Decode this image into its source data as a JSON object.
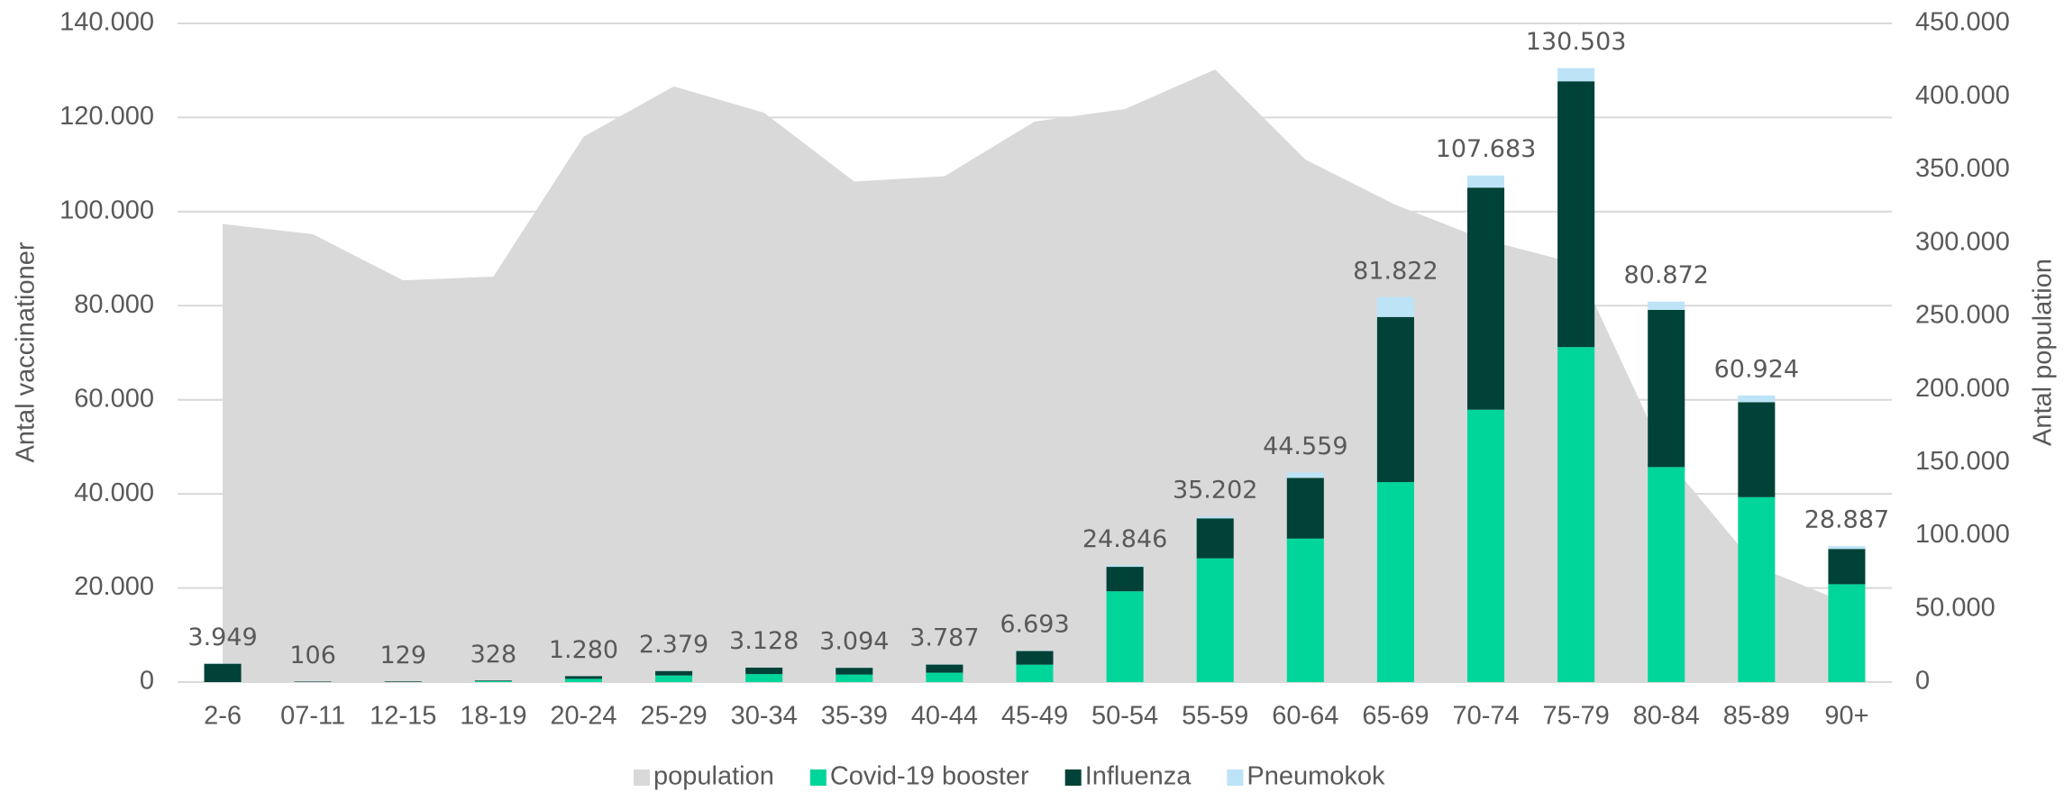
{
  "chart_data": {
    "type": "bar",
    "stacked": true,
    "categories": [
      "2-6",
      "07-11",
      "12-15",
      "18-19",
      "20-24",
      "25-29",
      "30-34",
      "35-39",
      "40-44",
      "45-49",
      "50-54",
      "55-59",
      "60-64",
      "65-69",
      "70-74",
      "75-79",
      "80-84",
      "85-89",
      "90+"
    ],
    "series": [
      {
        "name": "population",
        "type": "area",
        "axis": "y2",
        "color": "#d9d9d9",
        "values": [
          313000,
          306000,
          274500,
          277000,
          372600,
          407000,
          389000,
          342000,
          345600,
          383000,
          391500,
          418500,
          357000,
          326000,
          302000,
          286000,
          153000,
          79000,
          54000
        ]
      },
      {
        "name": "Covid-19 booster",
        "type": "bar",
        "color": "#00d69a",
        "values": [
          0,
          0,
          0,
          200,
          700,
          1400,
          1700,
          1600,
          2000,
          3700,
          19300,
          26300,
          30500,
          42500,
          57900,
          71200,
          45700,
          39300,
          20800
        ]
      },
      {
        "name": "Influenza",
        "type": "bar",
        "color": "#004237",
        "values": [
          3900,
          106,
          129,
          128,
          560,
          950,
          1380,
          1440,
          1720,
          2900,
          5200,
          8500,
          12900,
          35100,
          47200,
          56500,
          33400,
          20200,
          7500
        ]
      },
      {
        "name": "Pneumokok",
        "type": "bar",
        "color": "#bde3f7",
        "values": [
          49,
          0,
          0,
          0,
          20,
          29,
          48,
          54,
          67,
          93,
          346,
          402,
          1159,
          4222,
          2583,
          2803,
          1772,
          1424,
          587
        ]
      }
    ],
    "totals": {
      "values": [
        3949,
        106,
        129,
        328,
        1280,
        2379,
        3128,
        3094,
        3787,
        6693,
        24846,
        35202,
        44559,
        81822,
        107683,
        130503,
        80872,
        60924,
        28887
      ],
      "value_labels": [
        "3.949",
        "106",
        "129",
        "328",
        "1.280",
        "2.379",
        "3.128",
        "3.094",
        "3.787",
        "6.693",
        "24.846",
        "35.202",
        "44.559",
        "81.822",
        "107.683",
        "130.503",
        "80.872",
        "60.924",
        "28.887"
      ]
    },
    "ylabel": "Antal vaccinationer",
    "y2label": "Antal population",
    "ylim": [
      0,
      140000
    ],
    "yticks": [
      0,
      {
        "value": 20000,
        "label": "20.000"
      },
      {
        "value": 40000,
        "label": "40.000"
      },
      {
        "value": 60000,
        "label": "60.000"
      },
      {
        "value": 80000,
        "label": "80.000"
      },
      {
        "value": 100000,
        "label": "100.000"
      },
      {
        "value": 120000,
        "label": "120.000"
      },
      {
        "value": 140000,
        "label": "140.000"
      }
    ],
    "y2lim": [
      0,
      450000
    ],
    "y2ticks": [
      0,
      {
        "value": 50000,
        "label": "50.000"
      },
      {
        "value": 100000,
        "label": "100.000"
      },
      {
        "value": 150000,
        "label": "150.000"
      },
      {
        "value": 200000,
        "label": "200.000"
      },
      {
        "value": 250000,
        "label": "250.000"
      },
      {
        "value": 300000,
        "label": "300.000"
      },
      {
        "value": 350000,
        "label": "350.000"
      },
      {
        "value": 400000,
        "label": "400.000"
      },
      {
        "value": 450000,
        "label": "450.000"
      }
    ],
    "grid": true,
    "legend": "bottom"
  }
}
